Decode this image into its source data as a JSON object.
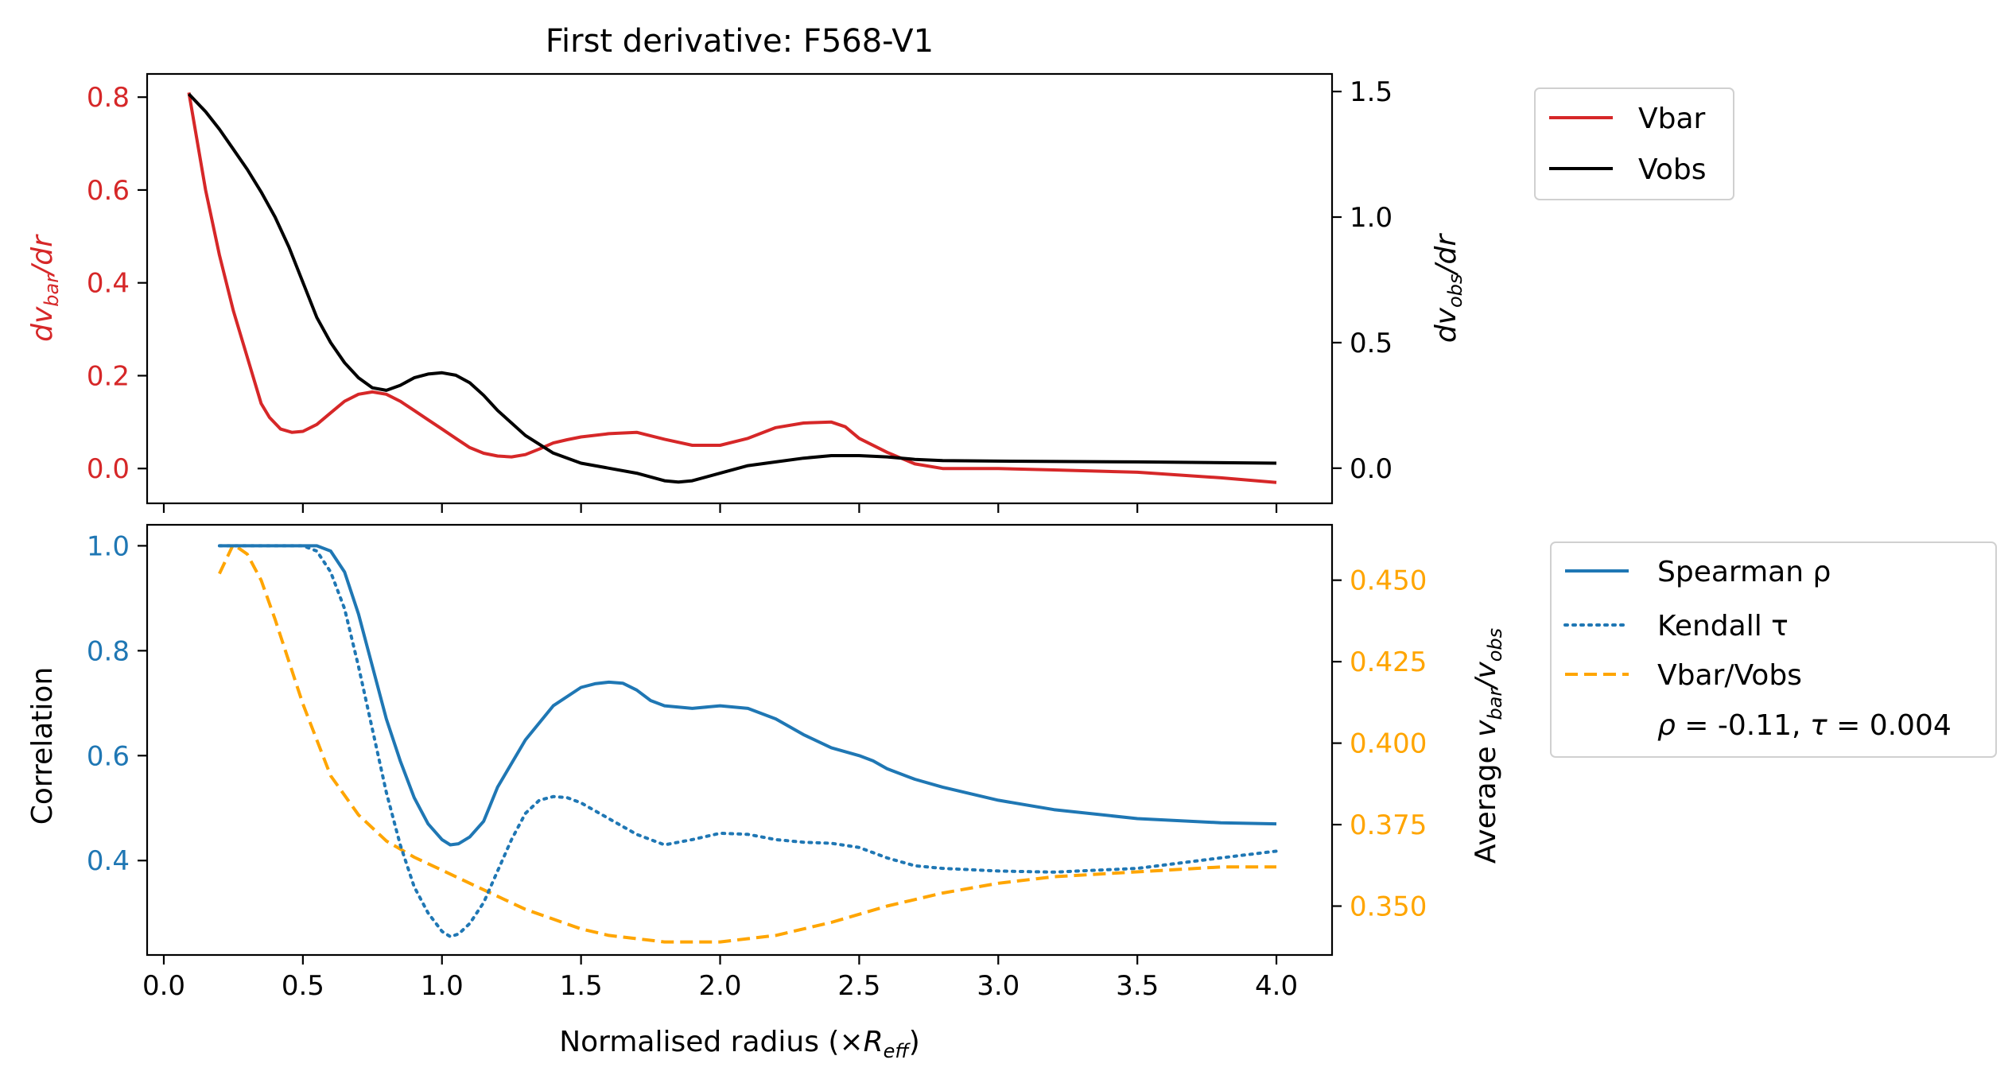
{
  "chart_data": [
    {
      "type": "line",
      "title": "First derivative: F568-V1",
      "xlabel": "",
      "ylabel_left": {
        "base": "dv",
        "sub": "bar",
        "tail": "/dr"
      },
      "ylabel_right": {
        "base": "dv",
        "sub": "obs",
        "tail": "/dr"
      },
      "xlim": [
        -0.06,
        4.2
      ],
      "ylim_left": [
        -0.075,
        0.85
      ],
      "ylim_right": [
        -0.14,
        1.57
      ],
      "xticks": [
        0.0,
        0.5,
        1.0,
        1.5,
        2.0,
        2.5,
        3.0,
        3.5,
        4.0
      ],
      "xtick_labels_visible": false,
      "yticks_left": [
        "0.0",
        "0.2",
        "0.4",
        "0.6",
        "0.8"
      ],
      "yticks_right": [
        "0.0",
        "0.5",
        "1.0",
        "1.5"
      ],
      "legend": {
        "placement": "outside-top-right",
        "entries": [
          "Vbar",
          "Vobs"
        ]
      },
      "colors": {
        "vbar": "#d62728",
        "vobs": "#000000"
      },
      "series": [
        {
          "name": "Vbar",
          "axis": "left",
          "color": "#d62728",
          "style": "solid",
          "x": [
            0.09,
            0.15,
            0.2,
            0.25,
            0.3,
            0.35,
            0.38,
            0.42,
            0.46,
            0.5,
            0.55,
            0.6,
            0.65,
            0.7,
            0.75,
            0.8,
            0.85,
            0.9,
            0.95,
            1.0,
            1.05,
            1.1,
            1.15,
            1.2,
            1.25,
            1.3,
            1.35,
            1.4,
            1.45,
            1.5,
            1.6,
            1.7,
            1.8,
            1.9,
            2.0,
            2.1,
            2.2,
            2.3,
            2.4,
            2.45,
            2.5,
            2.6,
            2.7,
            2.8,
            2.9,
            3.0,
            3.2,
            3.5,
            3.8,
            4.0
          ],
          "y": [
            0.81,
            0.6,
            0.46,
            0.34,
            0.24,
            0.14,
            0.11,
            0.085,
            0.078,
            0.08,
            0.095,
            0.12,
            0.145,
            0.16,
            0.165,
            0.16,
            0.145,
            0.125,
            0.105,
            0.085,
            0.065,
            0.045,
            0.033,
            0.027,
            0.025,
            0.03,
            0.042,
            0.055,
            0.062,
            0.068,
            0.075,
            0.078,
            0.063,
            0.05,
            0.05,
            0.065,
            0.088,
            0.098,
            0.1,
            0.09,
            0.065,
            0.035,
            0.01,
            0.0,
            0.0,
            0.0,
            -0.003,
            -0.008,
            -0.02,
            -0.03
          ]
        },
        {
          "name": "Vobs",
          "axis": "right",
          "color": "#000000",
          "style": "solid",
          "x": [
            0.09,
            0.15,
            0.2,
            0.25,
            0.3,
            0.35,
            0.4,
            0.45,
            0.5,
            0.55,
            0.6,
            0.65,
            0.7,
            0.75,
            0.8,
            0.85,
            0.9,
            0.95,
            1.0,
            1.05,
            1.1,
            1.15,
            1.2,
            1.3,
            1.4,
            1.5,
            1.6,
            1.7,
            1.8,
            1.85,
            1.9,
            2.0,
            2.1,
            2.2,
            2.3,
            2.4,
            2.5,
            2.6,
            2.7,
            2.8,
            3.0,
            3.5,
            4.0
          ],
          "y": [
            1.49,
            1.42,
            1.35,
            1.27,
            1.19,
            1.1,
            1.0,
            0.88,
            0.74,
            0.6,
            0.5,
            0.42,
            0.36,
            0.32,
            0.31,
            0.33,
            0.36,
            0.375,
            0.38,
            0.37,
            0.34,
            0.29,
            0.23,
            0.13,
            0.06,
            0.02,
            0.0,
            -0.02,
            -0.05,
            -0.055,
            -0.05,
            -0.02,
            0.01,
            0.025,
            0.04,
            0.05,
            0.05,
            0.045,
            0.035,
            0.03,
            0.028,
            0.025,
            0.02
          ]
        }
      ]
    },
    {
      "type": "line",
      "title": "",
      "xlabel": {
        "text": "Normalised radius (×",
        "sub_base": "R",
        "sub": "eff",
        "close": ")"
      },
      "ylabel_left": "Correlation",
      "ylabel_right": {
        "text": "Average ",
        "v1": "v",
        "s1": "bar",
        "slash": "/",
        "v2": "v",
        "s2": "obs"
      },
      "xlim": [
        -0.06,
        4.2
      ],
      "ylim_left": [
        0.22,
        1.04
      ],
      "ylim_right": [
        0.335,
        0.467
      ],
      "xticks": [
        0.0,
        0.5,
        1.0,
        1.5,
        2.0,
        2.5,
        3.0,
        3.5,
        4.0
      ],
      "xtick_labels": [
        "0.0",
        "0.5",
        "1.0",
        "1.5",
        "2.0",
        "2.5",
        "3.0",
        "3.5",
        "4.0"
      ],
      "yticks_left": [
        "0.4",
        "0.6",
        "0.8",
        "1.0"
      ],
      "yticks_right": [
        "0.350",
        "0.375",
        "0.400",
        "0.425",
        "0.450"
      ],
      "legend": {
        "placement": "outside-right",
        "entries": [
          "Spearman ρ",
          "Kendall τ",
          "Vbar/Vobs"
        ],
        "annotation": {
          "rho_label": "ρ",
          "rho_value": " = -0.11, ",
          "tau_label": "τ",
          "tau_value": " = 0.004"
        }
      },
      "colors": {
        "spearman": "#1f77b4",
        "kendall": "#1f77b4",
        "ratio": "#ffa500",
        "left_ticks": "#1f77b4",
        "right_ticks": "#ffa500"
      },
      "series": [
        {
          "name": "Spearman ρ",
          "axis": "left",
          "color": "#1f77b4",
          "style": "solid",
          "x": [
            0.2,
            0.3,
            0.4,
            0.5,
            0.55,
            0.6,
            0.65,
            0.7,
            0.75,
            0.8,
            0.85,
            0.9,
            0.95,
            1.0,
            1.03,
            1.06,
            1.1,
            1.15,
            1.2,
            1.3,
            1.4,
            1.5,
            1.55,
            1.6,
            1.65,
            1.7,
            1.75,
            1.8,
            1.9,
            2.0,
            2.1,
            2.2,
            2.3,
            2.4,
            2.5,
            2.55,
            2.6,
            2.7,
            2.8,
            3.0,
            3.2,
            3.5,
            3.8,
            4.0
          ],
          "y": [
            1.0,
            1.0,
            1.0,
            1.0,
            1.0,
            0.99,
            0.95,
            0.87,
            0.77,
            0.67,
            0.59,
            0.52,
            0.47,
            0.44,
            0.43,
            0.432,
            0.445,
            0.475,
            0.54,
            0.63,
            0.695,
            0.73,
            0.737,
            0.74,
            0.738,
            0.725,
            0.705,
            0.695,
            0.69,
            0.695,
            0.69,
            0.67,
            0.64,
            0.615,
            0.6,
            0.59,
            0.575,
            0.555,
            0.54,
            0.515,
            0.497,
            0.48,
            0.472,
            0.47
          ]
        },
        {
          "name": "Kendall τ",
          "axis": "left",
          "color": "#1f77b4",
          "style": "dotted",
          "x": [
            0.2,
            0.3,
            0.4,
            0.5,
            0.55,
            0.6,
            0.65,
            0.7,
            0.75,
            0.8,
            0.85,
            0.9,
            0.95,
            1.0,
            1.03,
            1.06,
            1.1,
            1.15,
            1.2,
            1.25,
            1.3,
            1.35,
            1.4,
            1.45,
            1.5,
            1.55,
            1.6,
            1.7,
            1.8,
            1.9,
            2.0,
            2.1,
            2.2,
            2.3,
            2.4,
            2.5,
            2.55,
            2.6,
            2.7,
            2.8,
            3.0,
            3.2,
            3.5,
            3.8,
            4.0
          ],
          "y": [
            1.0,
            1.0,
            1.0,
            1.0,
            0.99,
            0.95,
            0.88,
            0.77,
            0.65,
            0.53,
            0.43,
            0.35,
            0.3,
            0.265,
            0.255,
            0.26,
            0.28,
            0.32,
            0.38,
            0.44,
            0.49,
            0.515,
            0.522,
            0.52,
            0.51,
            0.495,
            0.48,
            0.45,
            0.43,
            0.44,
            0.452,
            0.45,
            0.44,
            0.435,
            0.433,
            0.425,
            0.415,
            0.405,
            0.39,
            0.385,
            0.38,
            0.378,
            0.385,
            0.405,
            0.418
          ]
        },
        {
          "name": "Vbar/Vobs",
          "axis": "right",
          "color": "#ffa500",
          "style": "dashed",
          "x": [
            0.2,
            0.25,
            0.3,
            0.35,
            0.4,
            0.5,
            0.6,
            0.7,
            0.8,
            0.9,
            1.0,
            1.1,
            1.2,
            1.3,
            1.4,
            1.5,
            1.6,
            1.7,
            1.8,
            1.9,
            2.0,
            2.1,
            2.2,
            2.4,
            2.6,
            2.8,
            3.0,
            3.2,
            3.4,
            3.6,
            3.8,
            4.0
          ],
          "y": [
            0.452,
            0.461,
            0.458,
            0.45,
            0.438,
            0.412,
            0.39,
            0.378,
            0.37,
            0.365,
            0.361,
            0.357,
            0.353,
            0.349,
            0.346,
            0.343,
            0.341,
            0.34,
            0.339,
            0.339,
            0.339,
            0.34,
            0.341,
            0.345,
            0.35,
            0.354,
            0.357,
            0.359,
            0.36,
            0.361,
            0.362,
            0.362
          ]
        }
      ]
    }
  ]
}
